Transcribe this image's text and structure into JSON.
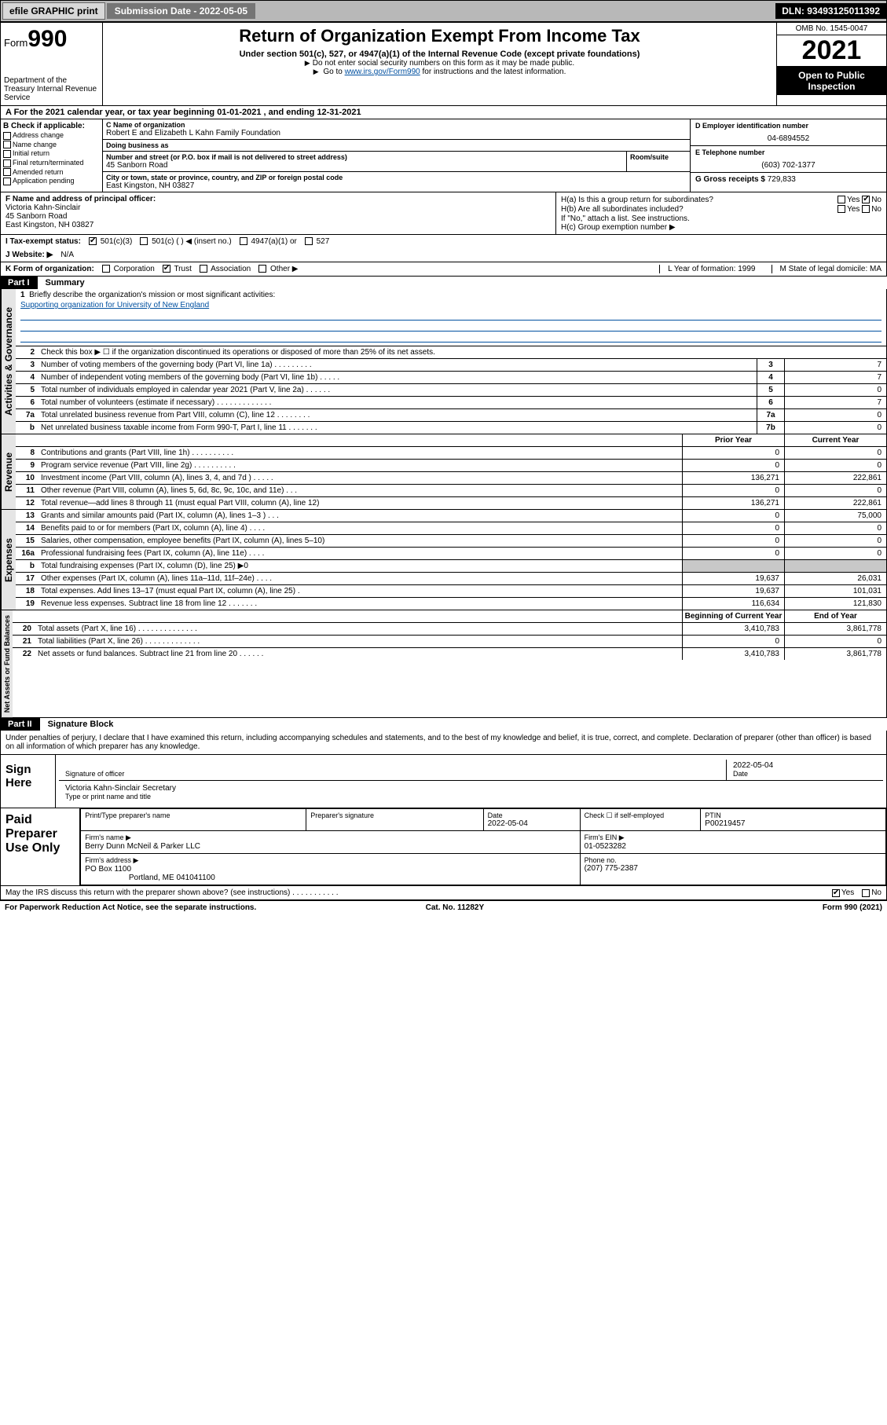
{
  "topbar": {
    "efile": "efile GRAPHIC print",
    "sub_label": "Submission Date",
    "sub_date": "2022-05-05",
    "dln_label": "DLN:",
    "dln": "93493125011392"
  },
  "header": {
    "form_word": "Form",
    "form_num": "990",
    "dept": "Department of the Treasury\nInternal Revenue Service",
    "title": "Return of Organization Exempt From Income Tax",
    "sub1": "Under section 501(c), 527, or 4947(a)(1) of the Internal Revenue Code (except private foundations)",
    "sub2a": "Do not enter social security numbers on this form as it may be made public.",
    "sub2b_pre": "Go to ",
    "sub2b_link": "www.irs.gov/Form990",
    "sub2b_post": " for instructions and the latest information.",
    "omb": "OMB No. 1545-0047",
    "year": "2021",
    "openpub": "Open to Public Inspection"
  },
  "rowA": "A For the 2021 calendar year, or tax year beginning 01-01-2021   , and ending 12-31-2021",
  "colB": {
    "hdr": "B Check if applicable:",
    "opts": [
      "Address change",
      "Name change",
      "Initial return",
      "Final return/terminated",
      "Amended return",
      "Application pending"
    ]
  },
  "colC": {
    "name_lbl": "C Name of organization",
    "name": "Robert E and Elizabeth L Kahn Family Foundation",
    "dba_lbl": "Doing business as",
    "dba": "",
    "street_lbl": "Number and street (or P.O. box if mail is not delivered to street address)",
    "street": "45 Sanborn Road",
    "room_lbl": "Room/suite",
    "city_lbl": "City or town, state or province, country, and ZIP or foreign postal code",
    "city": "East Kingston, NH  03827"
  },
  "colD": {
    "ein_lbl": "D Employer identification number",
    "ein": "04-6894552",
    "tel_lbl": "E Telephone number",
    "tel": "(603) 702-1377",
    "gross_lbl": "G Gross receipts $",
    "gross": "729,833"
  },
  "blockF": {
    "lbl": "F Name and address of principal officer:",
    "name": "Victoria Kahn-Sinclair",
    "addr1": "45 Sanborn Road",
    "addr2": "East Kingston, NH  03827"
  },
  "blockH": {
    "ha": "H(a)  Is this a group return for subordinates?",
    "ha_ans": "No",
    "hb": "H(b)  Are all subordinates included?",
    "hb_note": "If \"No,\" attach a list. See instructions.",
    "hc": "H(c)  Group exemption number ▶"
  },
  "rowI": {
    "lbl": "I   Tax-exempt status:",
    "o1": "501(c)(3)",
    "o2": "501(c) (  ) ◀ (insert no.)",
    "o3": "4947(a)(1) or",
    "o4": "527"
  },
  "rowJ": {
    "lbl": "J   Website: ▶",
    "val": "N/A"
  },
  "rowK": {
    "lbl": "K Form of organization:",
    "opts": [
      "Corporation",
      "Trust",
      "Association",
      "Other ▶"
    ],
    "checked": 1,
    "L": "L Year of formation: 1999",
    "M": "M State of legal domicile: MA"
  },
  "part1": {
    "label": "Part I",
    "title": "Summary"
  },
  "mission": {
    "num": "1",
    "lbl": "Briefly describe the organization's mission or most significant activities:",
    "text": "Supporting organization for University of New England"
  },
  "line2": {
    "num": "2",
    "txt": "Check this box ▶ ☐  if the organization discontinued its operations or disposed of more than 25% of its net assets."
  },
  "gov_lines": [
    {
      "n": "3",
      "t": "Number of voting members of the governing body (Part VI, line 1a)   .    .    .    .    .    .    .    .    .",
      "b": "3",
      "v": "7"
    },
    {
      "n": "4",
      "t": "Number of independent voting members of the governing body (Part VI, line 1b)    .    .    .    .    .",
      "b": "4",
      "v": "7"
    },
    {
      "n": "5",
      "t": "Total number of individuals employed in calendar year 2021 (Part V, line 2a)    .    .    .    .    .    .",
      "b": "5",
      "v": "0"
    },
    {
      "n": "6",
      "t": "Total number of volunteers (estimate if necessary)    .    .    .    .    .    .    .    .    .    .    .    .    .",
      "b": "6",
      "v": "7"
    },
    {
      "n": "7a",
      "t": "Total unrelated business revenue from Part VIII, column (C), line 12    .    .    .    .    .    .    .    .",
      "b": "7a",
      "v": "0"
    },
    {
      "n": "b",
      "t": "Net unrelated business taxable income from Form 990-T, Part I, line 11    .    .    .    .    .    .    .",
      "b": "7b",
      "v": "0"
    }
  ],
  "two_col_hdr": {
    "prior": "Prior Year",
    "curr": "Current Year"
  },
  "rev_lines": [
    {
      "n": "8",
      "t": "Contributions and grants (Part VIII, line 1h)    .    .    .    .    .    .    .    .    .    .",
      "p": "0",
      "c": "0"
    },
    {
      "n": "9",
      "t": "Program service revenue (Part VIII, line 2g)    .    .    .    .    .    .    .    .    .    .",
      "p": "0",
      "c": "0"
    },
    {
      "n": "10",
      "t": "Investment income (Part VIII, column (A), lines 3, 4, and 7d )    .    .    .    .    .",
      "p": "136,271",
      "c": "222,861"
    },
    {
      "n": "11",
      "t": "Other revenue (Part VIII, column (A), lines 5, 6d, 8c, 9c, 10c, and 11e)    .    .    .",
      "p": "0",
      "c": "0"
    },
    {
      "n": "12",
      "t": "Total revenue—add lines 8 through 11 (must equal Part VIII, column (A), line 12)",
      "p": "136,271",
      "c": "222,861"
    }
  ],
  "exp_lines": [
    {
      "n": "13",
      "t": "Grants and similar amounts paid (Part IX, column (A), lines 1–3 )    .    .    .",
      "p": "0",
      "c": "75,000"
    },
    {
      "n": "14",
      "t": "Benefits paid to or for members (Part IX, column (A), line 4)    .    .    .    .",
      "p": "0",
      "c": "0"
    },
    {
      "n": "15",
      "t": "Salaries, other compensation, employee benefits (Part IX, column (A), lines 5–10)",
      "p": "0",
      "c": "0"
    },
    {
      "n": "16a",
      "t": "Professional fundraising fees (Part IX, column (A), line 11e)    .    .    .    .",
      "p": "0",
      "c": "0"
    },
    {
      "n": "b",
      "t": "Total fundraising expenses (Part IX, column (D), line 25) ▶0",
      "p": "",
      "c": "",
      "shade": true
    },
    {
      "n": "17",
      "t": "Other expenses (Part IX, column (A), lines 11a–11d, 11f–24e)    .    .    .    .",
      "p": "19,637",
      "c": "26,031"
    },
    {
      "n": "18",
      "t": "Total expenses. Add lines 13–17 (must equal Part IX, column (A), line 25)    .",
      "p": "19,637",
      "c": "101,031"
    },
    {
      "n": "19",
      "t": "Revenue less expenses. Subtract line 18 from line 12    .    .    .    .    .    .    .",
      "p": "116,634",
      "c": "121,830"
    }
  ],
  "na_hdr": {
    "beg": "Beginning of Current Year",
    "end": "End of Year"
  },
  "na_lines": [
    {
      "n": "20",
      "t": "Total assets (Part X, line 16)    .    .    .    .    .    .    .    .    .    .    .    .    .    .",
      "p": "3,410,783",
      "c": "3,861,778"
    },
    {
      "n": "21",
      "t": "Total liabilities (Part X, line 26)    .    .    .    .    .    .    .    .    .    .    .    .    .",
      "p": "0",
      "c": "0"
    },
    {
      "n": "22",
      "t": "Net assets or fund balances. Subtract line 21 from line 20    .    .    .    .    .    .",
      "p": "3,410,783",
      "c": "3,861,778"
    }
  ],
  "part2": {
    "label": "Part II",
    "title": "Signature Block"
  },
  "p2_decl": "Under penalties of perjury, I declare that I have examined this return, including accompanying schedules and statements, and to the best of my knowledge and belief, it is true, correct, and complete. Declaration of preparer (other than officer) is based on all information of which preparer has any knowledge.",
  "sign": {
    "lbl": "Sign Here",
    "sig_lbl": "Signature of officer",
    "date": "2022-05-04",
    "date_lbl": "Date",
    "name": "Victoria Kahn-Sinclair Secretary",
    "name_lbl": "Type or print name and title"
  },
  "prep": {
    "lbl": "Paid Preparer Use Only",
    "h1": "Print/Type preparer's name",
    "h2": "Preparer's signature",
    "h3": "Date",
    "h3v": "2022-05-04",
    "h4": "Check ☐ if self-employed",
    "h5": "PTIN",
    "h5v": "P00219457",
    "firm_lbl": "Firm's name   ▶",
    "firm": "Berry Dunn McNeil & Parker LLC",
    "ein_lbl": "Firm's EIN ▶",
    "ein": "01-0523282",
    "addr_lbl": "Firm's address ▶",
    "addr1": "PO Box 1100",
    "addr2": "Portland, ME  041041100",
    "phone_lbl": "Phone no.",
    "phone": "(207) 775-2387"
  },
  "discuss": {
    "txt": "May the IRS discuss this return with the preparer shown above? (see instructions)    .    .    .    .    .    .    .    .    .    .    .",
    "yes": "Yes",
    "no": "No"
  },
  "foot": {
    "l": "For Paperwork Reduction Act Notice, see the separate instructions.",
    "m": "Cat. No. 11282Y",
    "r": "Form 990 (2021)"
  },
  "side_labels": {
    "gov": "Activities & Governance",
    "rev": "Revenue",
    "exp": "Expenses",
    "na": "Net Assets or Fund Balances"
  },
  "yes": "Yes",
  "no": "No"
}
